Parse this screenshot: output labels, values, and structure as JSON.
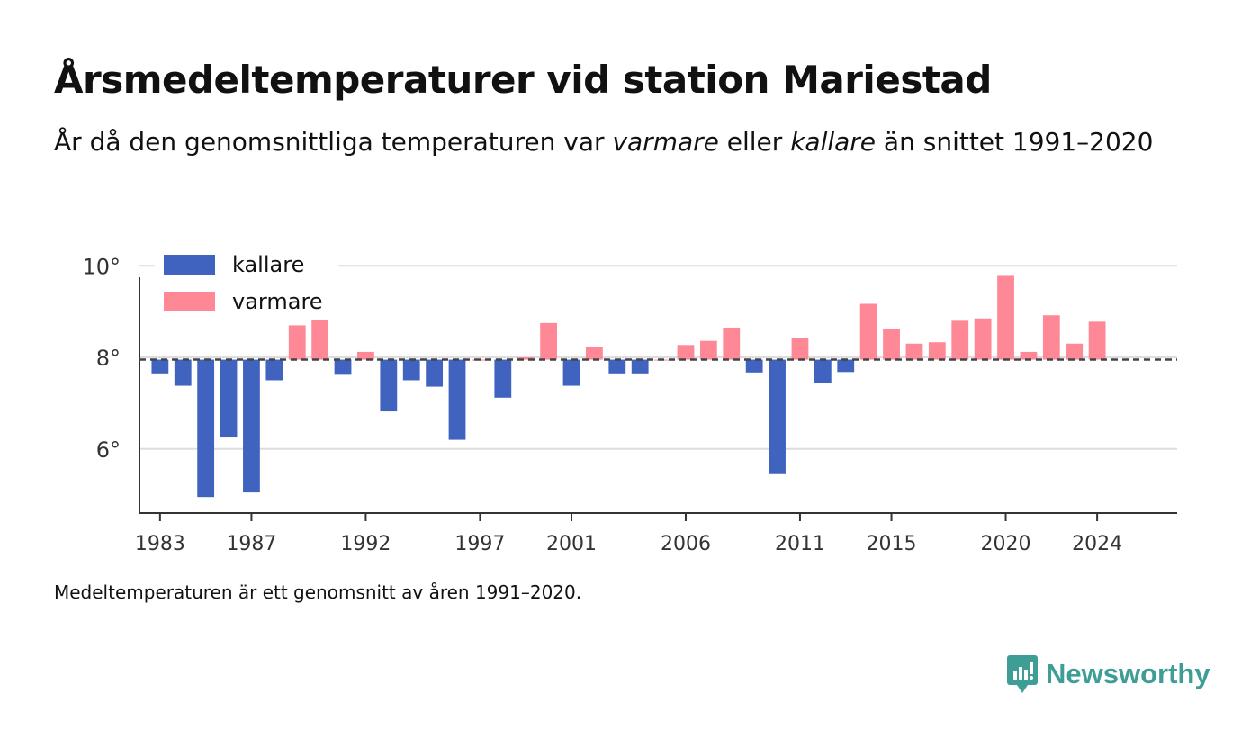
{
  "title": "Årsmedeltemperaturer vid station Mariestad",
  "subtitle": {
    "part1": "År då den genomsnittliga temperaturen var ",
    "warm": "varmare",
    "part2": " eller ",
    "cold": "kallare",
    "part3": " än snittet 1991–2020"
  },
  "note": "Medeltemperaturen är ett genomsnitt av åren 1991–2020.",
  "brand": {
    "name": "Newsworthy",
    "icon": "newsworthy-logo-icon",
    "color": "#3e9e96"
  },
  "chart_data": {
    "type": "bar",
    "title": "Årsmedeltemperaturer vid station Mariestad",
    "baseline": 7.95,
    "ylim": [
      4.6,
      10.3
    ],
    "xlim": [
      1982.1,
      2027.5
    ],
    "yticks": [
      6,
      8,
      10
    ],
    "ytick_labels": [
      "6°",
      "8°",
      "10°"
    ],
    "xticks": [
      1983,
      1987,
      1992,
      1997,
      2001,
      2006,
      2011,
      2015,
      2020,
      2024
    ],
    "grid": true,
    "legend": {
      "position": "top-left",
      "entries": [
        {
          "label": "kallare",
          "color": "#4063c0"
        },
        {
          "label": "varmare",
          "color": "#ff8896"
        }
      ]
    },
    "colors": {
      "kallare": "#4063c0",
      "varmare": "#ff8896",
      "baseline": "#444444",
      "grid": "#dddddd",
      "axis": "#333333"
    },
    "years": [
      1983,
      1984,
      1985,
      1986,
      1987,
      1988,
      1989,
      1990,
      1991,
      1992,
      1993,
      1994,
      1995,
      1996,
      1997,
      1998,
      1999,
      2000,
      2001,
      2002,
      2003,
      2004,
      2005,
      2006,
      2007,
      2008,
      2009,
      2010,
      2011,
      2012,
      2013,
      2014,
      2015,
      2016,
      2017,
      2018,
      2019,
      2020,
      2021,
      2022,
      2023,
      2024
    ],
    "values": [
      7.65,
      7.38,
      4.95,
      6.25,
      5.05,
      7.5,
      8.7,
      8.82,
      7.62,
      8.12,
      6.82,
      7.5,
      7.36,
      6.2,
      7.95,
      7.12,
      8.0,
      8.75,
      7.38,
      8.22,
      7.65,
      7.65,
      7.95,
      8.27,
      8.36,
      8.65,
      7.67,
      5.45,
      8.42,
      7.43,
      7.68,
      9.17,
      8.63,
      8.3,
      8.33,
      8.8,
      8.85,
      9.78,
      8.12,
      8.92,
      8.3,
      8.78
    ]
  }
}
